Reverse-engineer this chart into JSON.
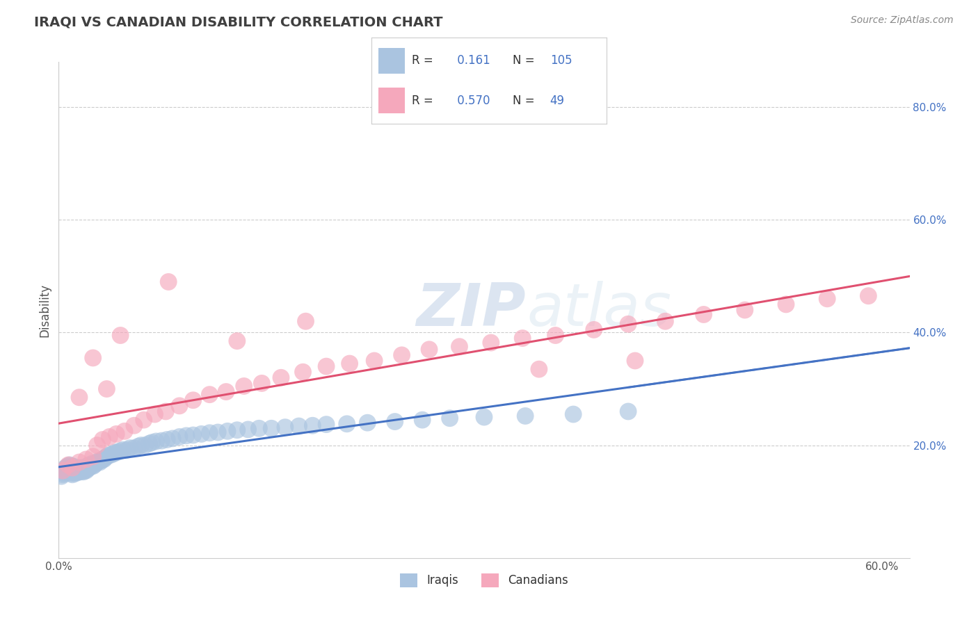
{
  "title": "IRAQI VS CANADIAN DISABILITY CORRELATION CHART",
  "source": "Source: ZipAtlas.com",
  "ylabel": "Disability",
  "xlim": [
    0.0,
    0.62
  ],
  "ylim": [
    0.0,
    0.88
  ],
  "xticks": [
    0.0,
    0.1,
    0.2,
    0.3,
    0.4,
    0.5,
    0.6
  ],
  "xticklabels": [
    "0.0%",
    "",
    "",
    "",
    "",
    "",
    "60.0%"
  ],
  "yticks_right": [
    0.2,
    0.4,
    0.6,
    0.8
  ],
  "yticklabels_right": [
    "20.0%",
    "40.0%",
    "60.0%",
    "80.0%"
  ],
  "grid_color": "#cccccc",
  "background_color": "#ffffff",
  "iraqi_color": "#aac4e0",
  "canadian_color": "#f5a8bc",
  "iraqi_line_color": "#4472c4",
  "canadian_line_color": "#e05070",
  "iraqi_R": 0.161,
  "iraqi_N": 105,
  "canadian_R": 0.57,
  "canadian_N": 49,
  "title_color": "#404040",
  "source_color": "#888888",
  "watermark_zip": "ZIP",
  "watermark_atlas": "atlas",
  "iraqi_x": [
    0.002,
    0.003,
    0.004,
    0.004,
    0.005,
    0.005,
    0.005,
    0.006,
    0.006,
    0.006,
    0.007,
    0.007,
    0.007,
    0.008,
    0.008,
    0.008,
    0.009,
    0.009,
    0.009,
    0.01,
    0.01,
    0.01,
    0.01,
    0.011,
    0.011,
    0.011,
    0.012,
    0.012,
    0.012,
    0.013,
    0.013,
    0.014,
    0.014,
    0.015,
    0.015,
    0.016,
    0.016,
    0.017,
    0.017,
    0.018,
    0.018,
    0.019,
    0.019,
    0.02,
    0.02,
    0.021,
    0.022,
    0.022,
    0.023,
    0.024,
    0.025,
    0.025,
    0.026,
    0.027,
    0.028,
    0.029,
    0.03,
    0.031,
    0.032,
    0.033,
    0.034,
    0.035,
    0.036,
    0.038,
    0.04,
    0.041,
    0.043,
    0.045,
    0.047,
    0.05,
    0.052,
    0.055,
    0.058,
    0.06,
    0.063,
    0.066,
    0.068,
    0.071,
    0.075,
    0.079,
    0.083,
    0.088,
    0.093,
    0.098,
    0.104,
    0.11,
    0.116,
    0.123,
    0.13,
    0.138,
    0.146,
    0.155,
    0.165,
    0.175,
    0.185,
    0.195,
    0.21,
    0.225,
    0.245,
    0.265,
    0.285,
    0.31,
    0.34,
    0.375,
    0.415
  ],
  "iraqi_y": [
    0.145,
    0.148,
    0.15,
    0.155,
    0.152,
    0.158,
    0.16,
    0.155,
    0.158,
    0.162,
    0.152,
    0.157,
    0.163,
    0.155,
    0.16,
    0.165,
    0.15,
    0.155,
    0.16,
    0.148,
    0.153,
    0.158,
    0.163,
    0.152,
    0.157,
    0.162,
    0.15,
    0.155,
    0.16,
    0.153,
    0.158,
    0.152,
    0.157,
    0.155,
    0.16,
    0.153,
    0.158,
    0.155,
    0.16,
    0.153,
    0.158,
    0.155,
    0.16,
    0.155,
    0.162,
    0.158,
    0.16,
    0.165,
    0.162,
    0.165,
    0.163,
    0.168,
    0.165,
    0.168,
    0.17,
    0.172,
    0.17,
    0.173,
    0.175,
    0.175,
    0.178,
    0.18,
    0.182,
    0.183,
    0.185,
    0.187,
    0.188,
    0.19,
    0.192,
    0.192,
    0.195,
    0.195,
    0.198,
    0.2,
    0.2,
    0.203,
    0.205,
    0.207,
    0.208,
    0.21,
    0.212,
    0.215,
    0.217,
    0.218,
    0.22,
    0.222,
    0.223,
    0.225,
    0.227,
    0.228,
    0.23,
    0.23,
    0.232,
    0.234,
    0.235,
    0.237,
    0.238,
    0.24,
    0.242,
    0.245,
    0.248,
    0.25,
    0.252,
    0.255,
    0.26
  ],
  "canadian_x": [
    0.003,
    0.007,
    0.01,
    0.015,
    0.02,
    0.025,
    0.028,
    0.032,
    0.037,
    0.042,
    0.048,
    0.055,
    0.062,
    0.07,
    0.078,
    0.088,
    0.098,
    0.11,
    0.122,
    0.135,
    0.148,
    0.162,
    0.178,
    0.195,
    0.212,
    0.23,
    0.25,
    0.27,
    0.292,
    0.315,
    0.338,
    0.362,
    0.39,
    0.415,
    0.442,
    0.47,
    0.5,
    0.53,
    0.56,
    0.59,
    0.015,
    0.025,
    0.035,
    0.045,
    0.08,
    0.13,
    0.18,
    0.35,
    0.42
  ],
  "canadian_y": [
    0.155,
    0.165,
    0.16,
    0.17,
    0.175,
    0.18,
    0.2,
    0.21,
    0.215,
    0.22,
    0.225,
    0.235,
    0.245,
    0.255,
    0.26,
    0.27,
    0.28,
    0.29,
    0.295,
    0.305,
    0.31,
    0.32,
    0.33,
    0.34,
    0.345,
    0.35,
    0.36,
    0.37,
    0.375,
    0.382,
    0.39,
    0.395,
    0.405,
    0.415,
    0.42,
    0.432,
    0.44,
    0.45,
    0.46,
    0.465,
    0.285,
    0.355,
    0.3,
    0.395,
    0.49,
    0.385,
    0.42,
    0.335,
    0.35
  ]
}
